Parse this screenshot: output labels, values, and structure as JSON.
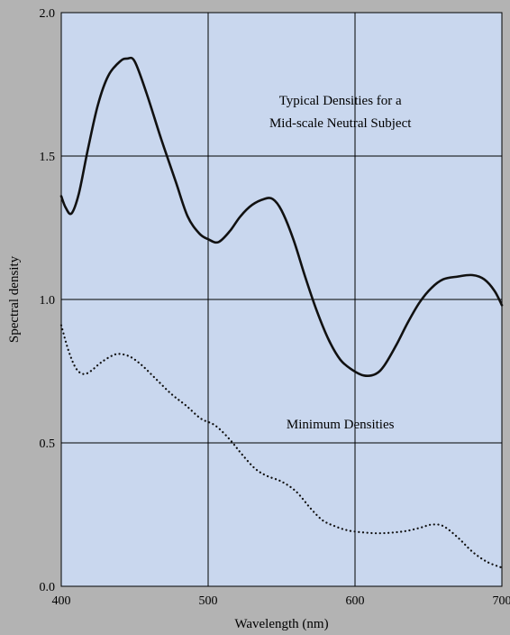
{
  "chart_data": {
    "type": "line",
    "title": "",
    "xlabel": "Wavelength (nm)",
    "ylabel": "Spectral density",
    "xlim": [
      400,
      700
    ],
    "ylim": [
      0.0,
      2.0
    ],
    "x_ticks": [
      400,
      500,
      600,
      700
    ],
    "x_tick_labels": [
      "400",
      "500",
      "600",
      "700"
    ],
    "y_ticks": [
      0.0,
      0.5,
      1.0,
      1.5,
      2.0
    ],
    "y_tick_labels": [
      "0.0",
      "0.5",
      "1.0",
      "1.5",
      "2.0"
    ],
    "grid": true,
    "plot_background": "#c9d7ee",
    "page_background": "#b3b3b3",
    "series": [
      {
        "name": "Typical Densities for a Mid-scale Neutral Subject",
        "style": "solid",
        "color": "#111111",
        "points": [
          [
            400,
            1.36
          ],
          [
            403,
            1.32
          ],
          [
            407,
            1.3
          ],
          [
            412,
            1.37
          ],
          [
            418,
            1.52
          ],
          [
            425,
            1.68
          ],
          [
            432,
            1.78
          ],
          [
            440,
            1.83
          ],
          [
            445,
            1.84
          ],
          [
            450,
            1.83
          ],
          [
            458,
            1.72
          ],
          [
            468,
            1.56
          ],
          [
            478,
            1.41
          ],
          [
            486,
            1.29
          ],
          [
            494,
            1.23
          ],
          [
            500,
            1.21
          ],
          [
            507,
            1.2
          ],
          [
            515,
            1.24
          ],
          [
            522,
            1.29
          ],
          [
            530,
            1.33
          ],
          [
            538,
            1.35
          ],
          [
            544,
            1.35
          ],
          [
            550,
            1.31
          ],
          [
            558,
            1.21
          ],
          [
            566,
            1.08
          ],
          [
            574,
            0.96
          ],
          [
            582,
            0.86
          ],
          [
            590,
            0.79
          ],
          [
            598,
            0.755
          ],
          [
            606,
            0.735
          ],
          [
            614,
            0.74
          ],
          [
            620,
            0.77
          ],
          [
            628,
            0.84
          ],
          [
            636,
            0.92
          ],
          [
            644,
            0.99
          ],
          [
            652,
            1.04
          ],
          [
            660,
            1.07
          ],
          [
            670,
            1.08
          ],
          [
            680,
            1.085
          ],
          [
            688,
            1.07
          ],
          [
            695,
            1.03
          ],
          [
            700,
            0.98
          ]
        ]
      },
      {
        "name": "Minimum Densities",
        "style": "dotted",
        "color": "#111111",
        "points": [
          [
            400,
            0.91
          ],
          [
            405,
            0.82
          ],
          [
            410,
            0.76
          ],
          [
            415,
            0.74
          ],
          [
            420,
            0.75
          ],
          [
            427,
            0.78
          ],
          [
            435,
            0.805
          ],
          [
            440,
            0.81
          ],
          [
            447,
            0.8
          ],
          [
            455,
            0.77
          ],
          [
            465,
            0.72
          ],
          [
            475,
            0.67
          ],
          [
            485,
            0.63
          ],
          [
            495,
            0.585
          ],
          [
            505,
            0.56
          ],
          [
            515,
            0.51
          ],
          [
            523,
            0.46
          ],
          [
            532,
            0.41
          ],
          [
            540,
            0.385
          ],
          [
            550,
            0.365
          ],
          [
            560,
            0.33
          ],
          [
            570,
            0.27
          ],
          [
            578,
            0.23
          ],
          [
            586,
            0.21
          ],
          [
            595,
            0.195
          ],
          [
            605,
            0.188
          ],
          [
            615,
            0.185
          ],
          [
            625,
            0.187
          ],
          [
            635,
            0.193
          ],
          [
            645,
            0.205
          ],
          [
            652,
            0.215
          ],
          [
            660,
            0.21
          ],
          [
            670,
            0.17
          ],
          [
            680,
            0.12
          ],
          [
            690,
            0.085
          ],
          [
            700,
            0.065
          ]
        ]
      }
    ],
    "annotations": [
      {
        "id": "typical-line1",
        "text": "Typical Densities for a",
        "x": 590,
        "y": 1.68
      },
      {
        "id": "typical-line2",
        "text": "Mid-scale Neutral Subject",
        "x": 590,
        "y": 1.6
      },
      {
        "id": "minimum",
        "text": "Minimum Densities",
        "x": 590,
        "y": 0.55
      }
    ]
  }
}
